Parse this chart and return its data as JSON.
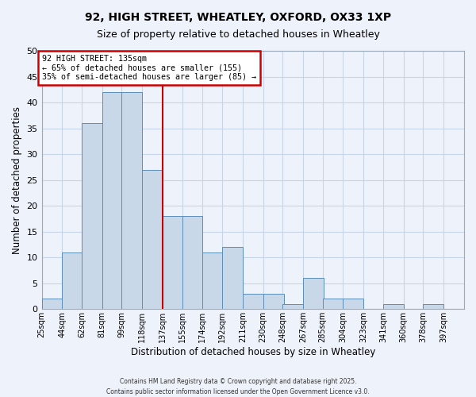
{
  "title": "92, HIGH STREET, WHEATLEY, OXFORD, OX33 1XP",
  "subtitle": "Size of property relative to detached houses in Wheatley",
  "xlabel": "Distribution of detached houses by size in Wheatley",
  "ylabel": "Number of detached properties",
  "bin_labels": [
    "25sqm",
    "44sqm",
    "62sqm",
    "81sqm",
    "99sqm",
    "118sqm",
    "137sqm",
    "155sqm",
    "174sqm",
    "192sqm",
    "211sqm",
    "230sqm",
    "248sqm",
    "267sqm",
    "285sqm",
    "304sqm",
    "323sqm",
    "341sqm",
    "360sqm",
    "378sqm",
    "397sqm"
  ],
  "bin_edges": [
    25,
    44,
    62,
    81,
    99,
    118,
    137,
    155,
    174,
    192,
    211,
    230,
    248,
    267,
    285,
    304,
    323,
    341,
    360,
    378,
    397
  ],
  "counts": [
    2,
    11,
    36,
    42,
    42,
    27,
    18,
    18,
    11,
    12,
    3,
    3,
    1,
    6,
    2,
    2,
    0,
    1,
    0,
    1,
    0
  ],
  "bar_color": "#c8d8e8",
  "bar_edge_color": "#5b8db8",
  "vline_color": "#cc0000",
  "vline_x": 137,
  "annotation_title": "92 HIGH STREET: 135sqm",
  "annotation_line1": "← 65% of detached houses are smaller (155)",
  "annotation_line2": "35% of semi-detached houses are larger (85) →",
  "annotation_box_edgecolor": "#cc0000",
  "grid_color": "#c8d4e8",
  "background_color": "#eef2fa",
  "ylim": [
    0,
    50
  ],
  "yticks": [
    0,
    5,
    10,
    15,
    20,
    25,
    30,
    35,
    40,
    45,
    50
  ],
  "footer1": "Contains HM Land Registry data © Crown copyright and database right 2025.",
  "footer2": "Contains public sector information licensed under the Open Government Licence v3.0."
}
